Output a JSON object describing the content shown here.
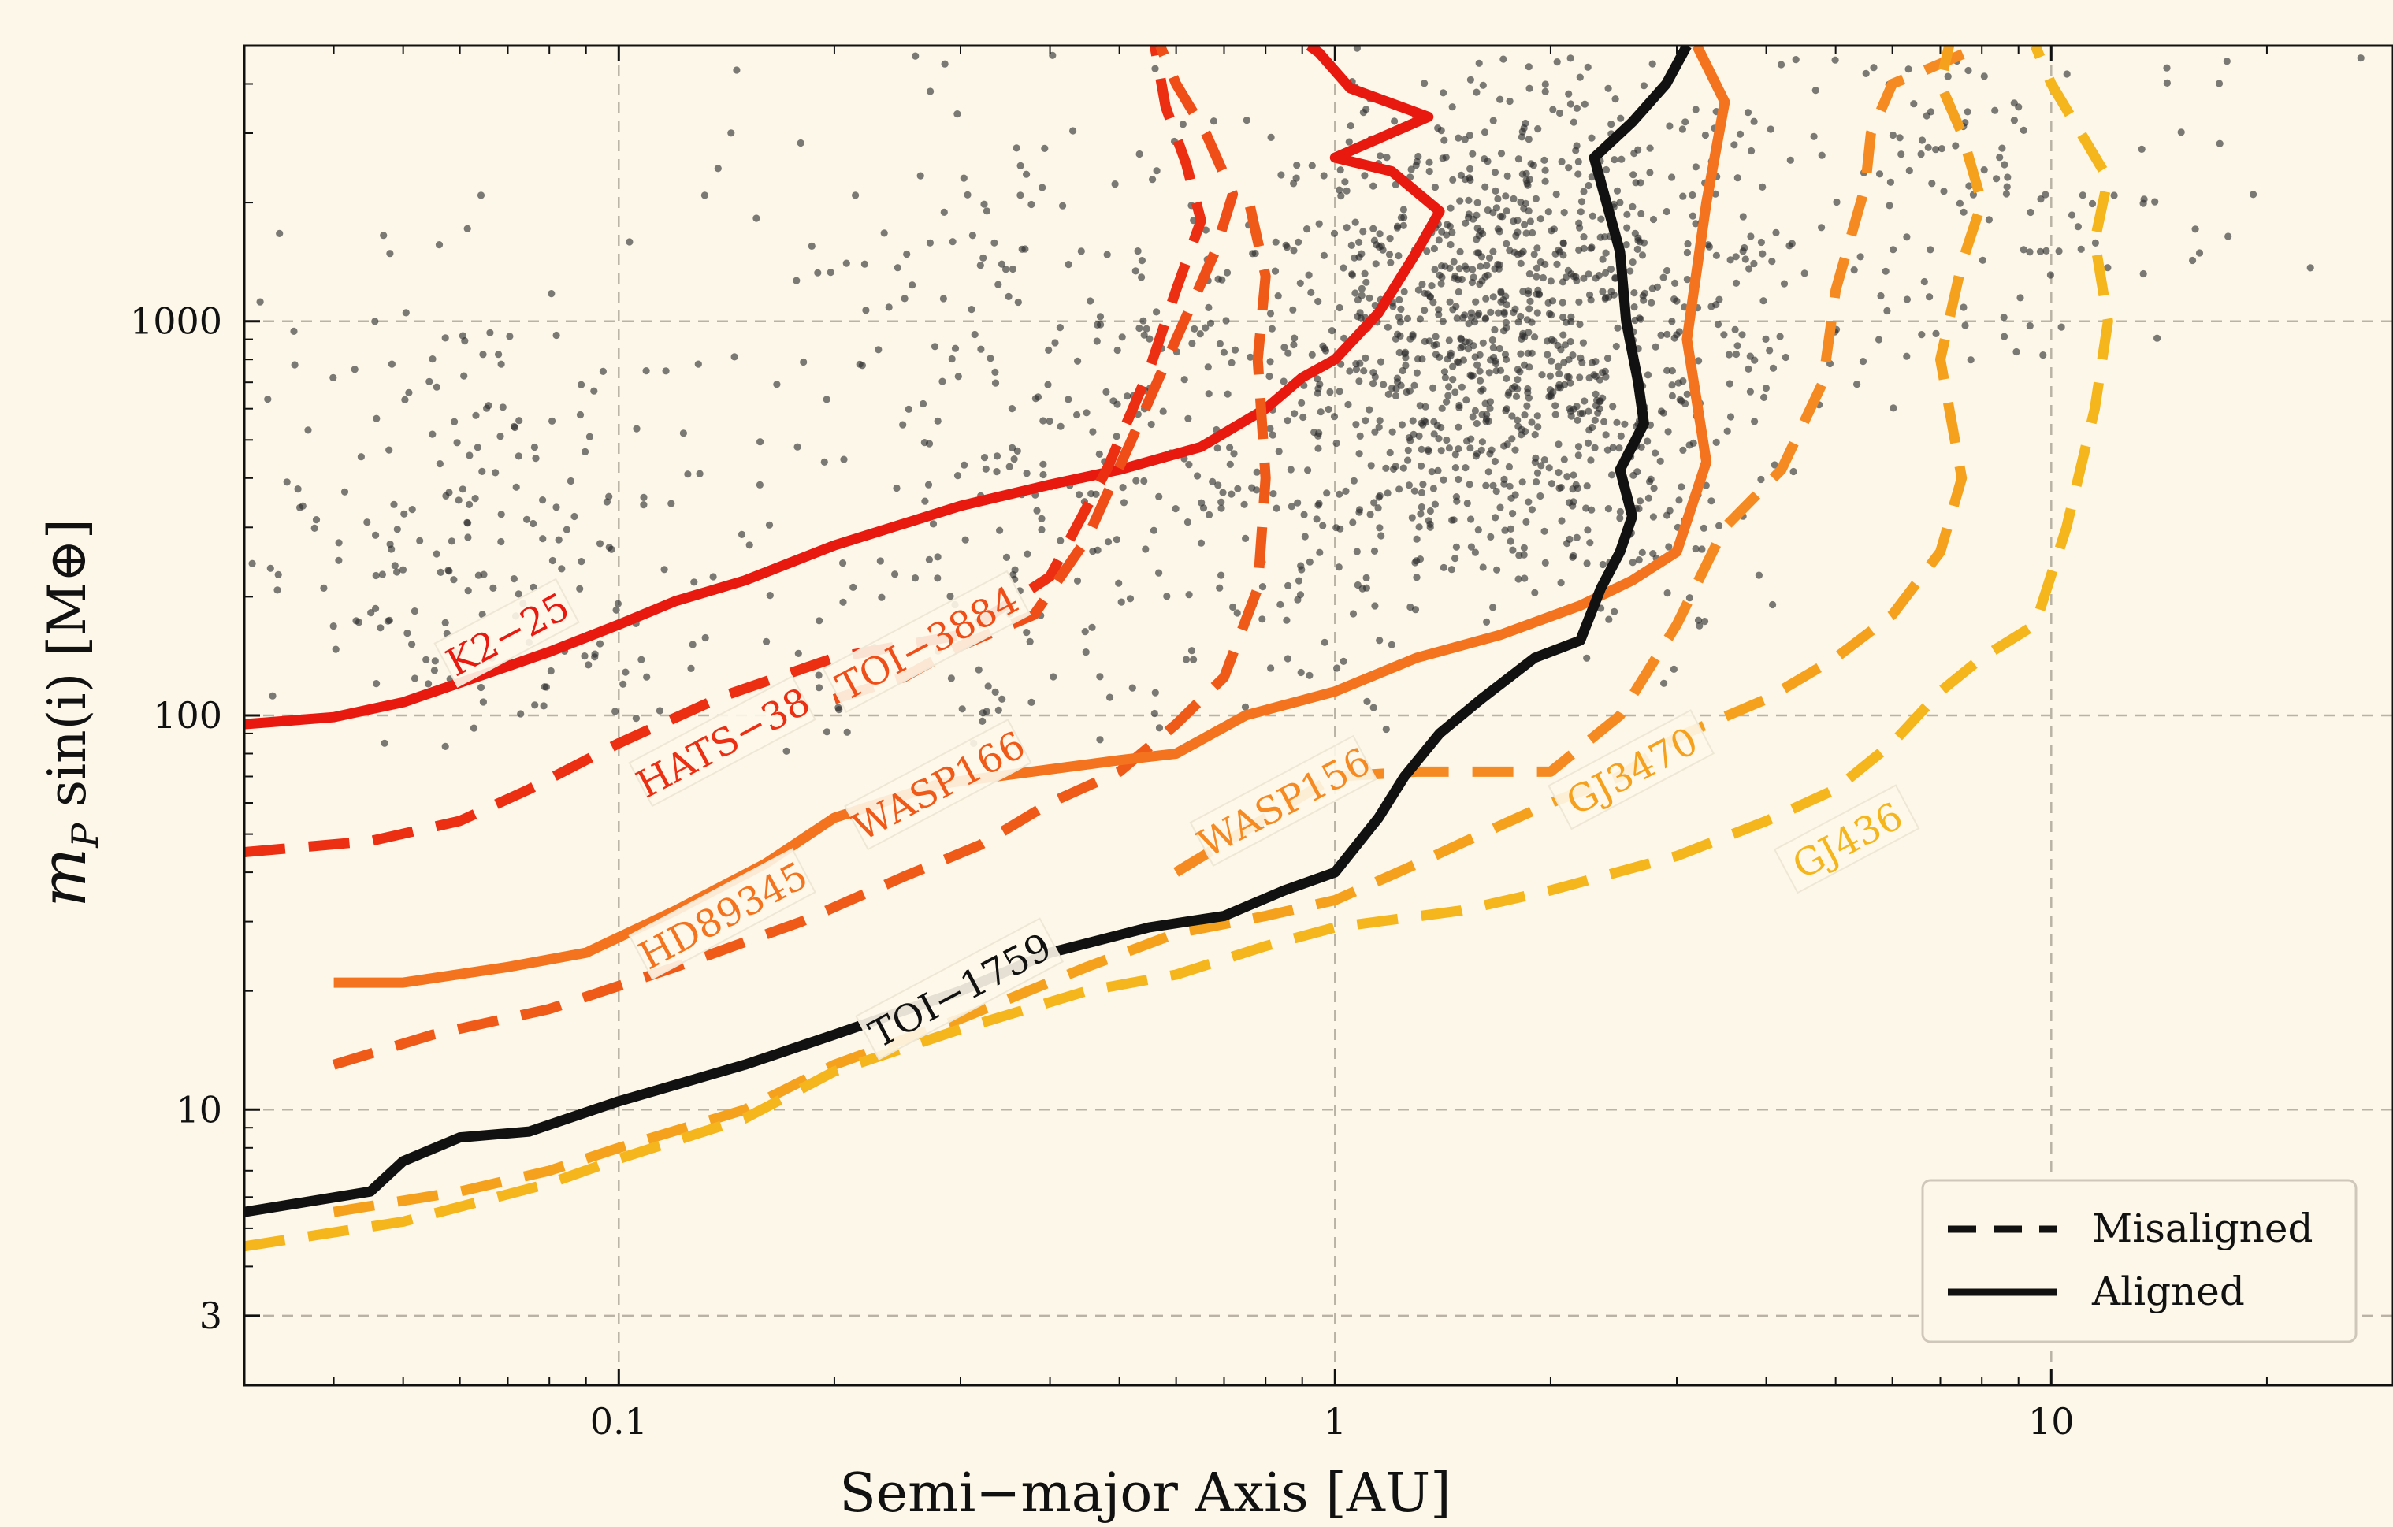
{
  "chart_data": {
    "type": "line",
    "xlabel": "Semi−major Axis [AU]",
    "ylabel_main": "m",
    "ylabel_sub": "P",
    "ylabel_rest": " sin(i) [M⊕]",
    "xscale": "log",
    "yscale": "log",
    "xlim": [
      0.03,
      30
    ],
    "ylim": [
      2,
      5000
    ],
    "xticks": [
      0.1,
      1,
      10
    ],
    "xtick_labels": [
      "0.1",
      "1",
      "10"
    ],
    "yticks": [
      3,
      10,
      100,
      1000
    ],
    "ytick_labels": [
      "3",
      "10",
      "100",
      "1000"
    ],
    "grid": true,
    "legend": {
      "placement": "lower-right",
      "entries": [
        {
          "label": "Misaligned",
          "style": "dashed"
        },
        {
          "label": "Aligned",
          "style": "solid"
        }
      ]
    },
    "series": [
      {
        "name": "K2−25",
        "color": "#e8190f",
        "style": "solid",
        "label_at": [
          0.07,
          160
        ],
        "points": [
          [
            0.03,
            95
          ],
          [
            0.04,
            99
          ],
          [
            0.05,
            108
          ],
          [
            0.06,
            121
          ],
          [
            0.08,
            145
          ],
          [
            0.1,
            170
          ],
          [
            0.12,
            195
          ],
          [
            0.15,
            220
          ],
          [
            0.2,
            270
          ],
          [
            0.3,
            340
          ],
          [
            0.4,
            385
          ],
          [
            0.5,
            420
          ],
          [
            0.65,
            480
          ],
          [
            0.8,
            600
          ],
          [
            0.9,
            720
          ],
          [
            1.0,
            800
          ],
          [
            1.15,
            1050
          ],
          [
            1.3,
            1500
          ],
          [
            1.4,
            1900
          ],
          [
            1.2,
            2400
          ],
          [
            1.0,
            2600
          ],
          [
            1.35,
            3300
          ],
          [
            1.05,
            3900
          ],
          [
            0.95,
            4800
          ],
          [
            0.92,
            5000
          ]
        ]
      },
      {
        "name": "HATS−38",
        "color": "#ec2f12",
        "style": "dashed",
        "label_at": [
          0.14,
          85
        ],
        "points": [
          [
            0.03,
            45
          ],
          [
            0.045,
            48
          ],
          [
            0.06,
            54
          ],
          [
            0.075,
            65
          ],
          [
            0.1,
            85
          ],
          [
            0.14,
            112
          ],
          [
            0.2,
            140
          ],
          [
            0.3,
            160
          ],
          [
            0.4,
            225
          ],
          [
            0.48,
            420
          ],
          [
            0.55,
            750
          ],
          [
            0.6,
            1200
          ],
          [
            0.65,
            1800
          ],
          [
            0.62,
            2500
          ],
          [
            0.58,
            3500
          ],
          [
            0.56,
            5000
          ]
        ]
      },
      {
        "name": "TOI−3884",
        "color": "#f04e18",
        "style": "dashed",
        "label_at": [
          0.27,
          152
        ],
        "points": [
          [
            0.2,
            110
          ],
          [
            0.25,
            125
          ],
          [
            0.3,
            150
          ],
          [
            0.38,
            180
          ],
          [
            0.45,
            280
          ],
          [
            0.52,
            500
          ],
          [
            0.6,
            900
          ],
          [
            0.68,
            1500
          ],
          [
            0.72,
            2100
          ],
          [
            0.66,
            3000
          ],
          [
            0.6,
            4000
          ],
          [
            0.57,
            5000
          ]
        ]
      },
      {
        "name": "WASP166",
        "color": "#f05a19",
        "style": "dashed",
        "label_at": [
          0.28,
          66
        ],
        "points": [
          [
            0.04,
            13
          ],
          [
            0.055,
            15.5
          ],
          [
            0.08,
            18
          ],
          [
            0.12,
            23
          ],
          [
            0.18,
            30
          ],
          [
            0.25,
            39
          ],
          [
            0.32,
            47
          ],
          [
            0.4,
            60
          ],
          [
            0.5,
            72
          ],
          [
            0.6,
            95
          ],
          [
            0.7,
            125
          ],
          [
            0.78,
            210
          ],
          [
            0.8,
            400
          ],
          [
            0.78,
            800
          ],
          [
            0.8,
            1300
          ],
          [
            0.75,
            2200
          ]
        ]
      },
      {
        "name": "HD89345",
        "color": "#f4731e",
        "style": "solid",
        "label_at": [
          0.14,
          31
        ],
        "points": [
          [
            0.04,
            21
          ],
          [
            0.05,
            21
          ],
          [
            0.07,
            23
          ],
          [
            0.09,
            25
          ],
          [
            0.12,
            32
          ],
          [
            0.16,
            42
          ],
          [
            0.2,
            55
          ],
          [
            0.28,
            67
          ],
          [
            0.4,
            73
          ],
          [
            0.5,
            77
          ],
          [
            0.6,
            80
          ],
          [
            0.75,
            100
          ],
          [
            1.0,
            115
          ],
          [
            1.3,
            140
          ],
          [
            1.7,
            160
          ],
          [
            2.2,
            190
          ],
          [
            2.6,
            220
          ],
          [
            3.0,
            260
          ],
          [
            3.3,
            440
          ],
          [
            3.1,
            900
          ],
          [
            3.3,
            2000
          ],
          [
            3.5,
            3600
          ],
          [
            3.2,
            5000
          ]
        ]
      },
      {
        "name": "WASP156",
        "color": "#f68a22",
        "style": "dashed",
        "label_at": [
          0.85,
          60
        ],
        "points": [
          [
            0.6,
            40
          ],
          [
            0.8,
            55
          ],
          [
            1.0,
            70
          ],
          [
            1.3,
            72
          ],
          [
            1.6,
            72
          ],
          [
            2.0,
            72
          ],
          [
            2.5,
            100
          ],
          [
            3.0,
            170
          ],
          [
            3.5,
            300
          ],
          [
            4.2,
            420
          ],
          [
            4.8,
            700
          ],
          [
            5.0,
            1200
          ],
          [
            5.5,
            2200
          ],
          [
            5.6,
            3000
          ],
          [
            6.0,
            4000
          ],
          [
            7.0,
            4500
          ],
          [
            8.0,
            5000
          ]
        ]
      },
      {
        "name": "GJ3470",
        "color": "#f6a11e",
        "style": "dashed",
        "label_at": [
          2.6,
          72
        ],
        "points": [
          [
            0.04,
            5.5
          ],
          [
            0.06,
            6.2
          ],
          [
            0.08,
            7.0
          ],
          [
            0.1,
            8.0
          ],
          [
            0.15,
            10
          ],
          [
            0.2,
            13
          ],
          [
            0.3,
            17
          ],
          [
            0.45,
            23
          ],
          [
            0.6,
            28
          ],
          [
            0.8,
            31
          ],
          [
            1.0,
            34
          ],
          [
            1.3,
            42
          ],
          [
            1.6,
            50
          ],
          [
            2.0,
            60
          ],
          [
            2.5,
            70
          ],
          [
            3.0,
            88
          ],
          [
            4.0,
            110
          ],
          [
            5.0,
            140
          ],
          [
            6.0,
            180
          ],
          [
            7.0,
            260
          ],
          [
            7.5,
            400
          ],
          [
            7.0,
            800
          ],
          [
            7.5,
            1400
          ],
          [
            8.0,
            2000
          ],
          [
            7.5,
            3000
          ],
          [
            7.0,
            4000
          ],
          [
            7.2,
            5000
          ]
        ]
      },
      {
        "name": "GJ436",
        "color": "#f5b51c",
        "style": "dashed",
        "label_at": [
          5.2,
          48
        ],
        "points": [
          [
            0.03,
            4.5
          ],
          [
            0.05,
            5.2
          ],
          [
            0.08,
            6.5
          ],
          [
            0.1,
            7.5
          ],
          [
            0.15,
            9.5
          ],
          [
            0.2,
            12.5
          ],
          [
            0.3,
            16
          ],
          [
            0.45,
            20
          ],
          [
            0.6,
            22
          ],
          [
            0.8,
            26
          ],
          [
            1.0,
            29
          ],
          [
            1.5,
            32
          ],
          [
            2.0,
            36
          ],
          [
            3.0,
            44
          ],
          [
            4.0,
            54
          ],
          [
            5.0,
            65
          ],
          [
            6.0,
            85
          ],
          [
            7.0,
            115
          ],
          [
            8.0,
            140
          ],
          [
            9.5,
            170
          ],
          [
            10.5,
            300
          ],
          [
            11.5,
            600
          ],
          [
            12.0,
            1000
          ],
          [
            11.5,
            1600
          ],
          [
            12.0,
            2300
          ],
          [
            11.0,
            3000
          ],
          [
            10.0,
            4000
          ],
          [
            9.5,
            5000
          ]
        ]
      },
      {
        "name": "TOI−1759",
        "color": "#111111",
        "style": "solid",
        "label_at": [
          0.3,
          20
        ],
        "points": [
          [
            0.03,
            5.5
          ],
          [
            0.045,
            6.2
          ],
          [
            0.05,
            7.4
          ],
          [
            0.06,
            8.5
          ],
          [
            0.075,
            8.8
          ],
          [
            0.1,
            10.5
          ],
          [
            0.15,
            13
          ],
          [
            0.2,
            15.5
          ],
          [
            0.3,
            20
          ],
          [
            0.4,
            25
          ],
          [
            0.55,
            29
          ],
          [
            0.7,
            31
          ],
          [
            0.85,
            36
          ],
          [
            1.0,
            40
          ],
          [
            1.15,
            55
          ],
          [
            1.25,
            70
          ],
          [
            1.4,
            90
          ],
          [
            1.6,
            110
          ],
          [
            1.9,
            140
          ],
          [
            2.2,
            155
          ],
          [
            2.35,
            210
          ],
          [
            2.5,
            260
          ],
          [
            2.6,
            320
          ],
          [
            2.5,
            420
          ],
          [
            2.7,
            550
          ],
          [
            2.65,
            700
          ],
          [
            2.55,
            1000
          ],
          [
            2.5,
            1500
          ],
          [
            2.3,
            2600
          ],
          [
            2.6,
            3200
          ],
          [
            2.9,
            4000
          ],
          [
            3.1,
            5000
          ]
        ]
      }
    ]
  }
}
